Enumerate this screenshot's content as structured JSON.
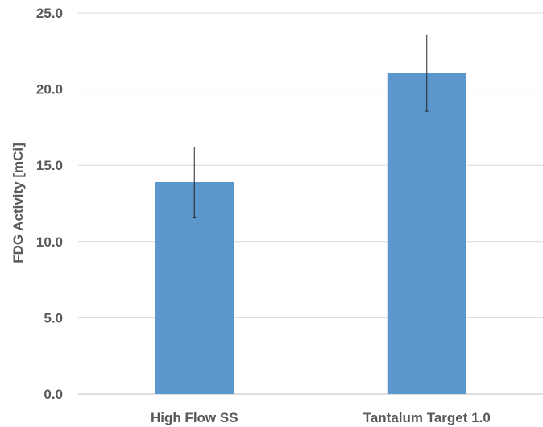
{
  "chart_data": {
    "type": "bar",
    "title": "",
    "xlabel": "",
    "ylabel": "FDG Activity [mCi]",
    "categories": [
      "High Flow SS",
      "Tantalum Target 1.0"
    ],
    "values": [
      13.9,
      21.05
    ],
    "errors": [
      2.3,
      2.5
    ],
    "ylim": [
      0,
      25
    ],
    "yticks": [
      0,
      5,
      10,
      15,
      20,
      25
    ],
    "ytick_labels": [
      "0.0",
      "5.0",
      "10.0",
      "15.0",
      "20.0",
      "25.0"
    ],
    "grid": true,
    "legend": "none",
    "colors": {
      "bar": "#5b96cc",
      "error_bar": "#262626",
      "grid": "#d9d9d9",
      "text": "#595959"
    }
  }
}
